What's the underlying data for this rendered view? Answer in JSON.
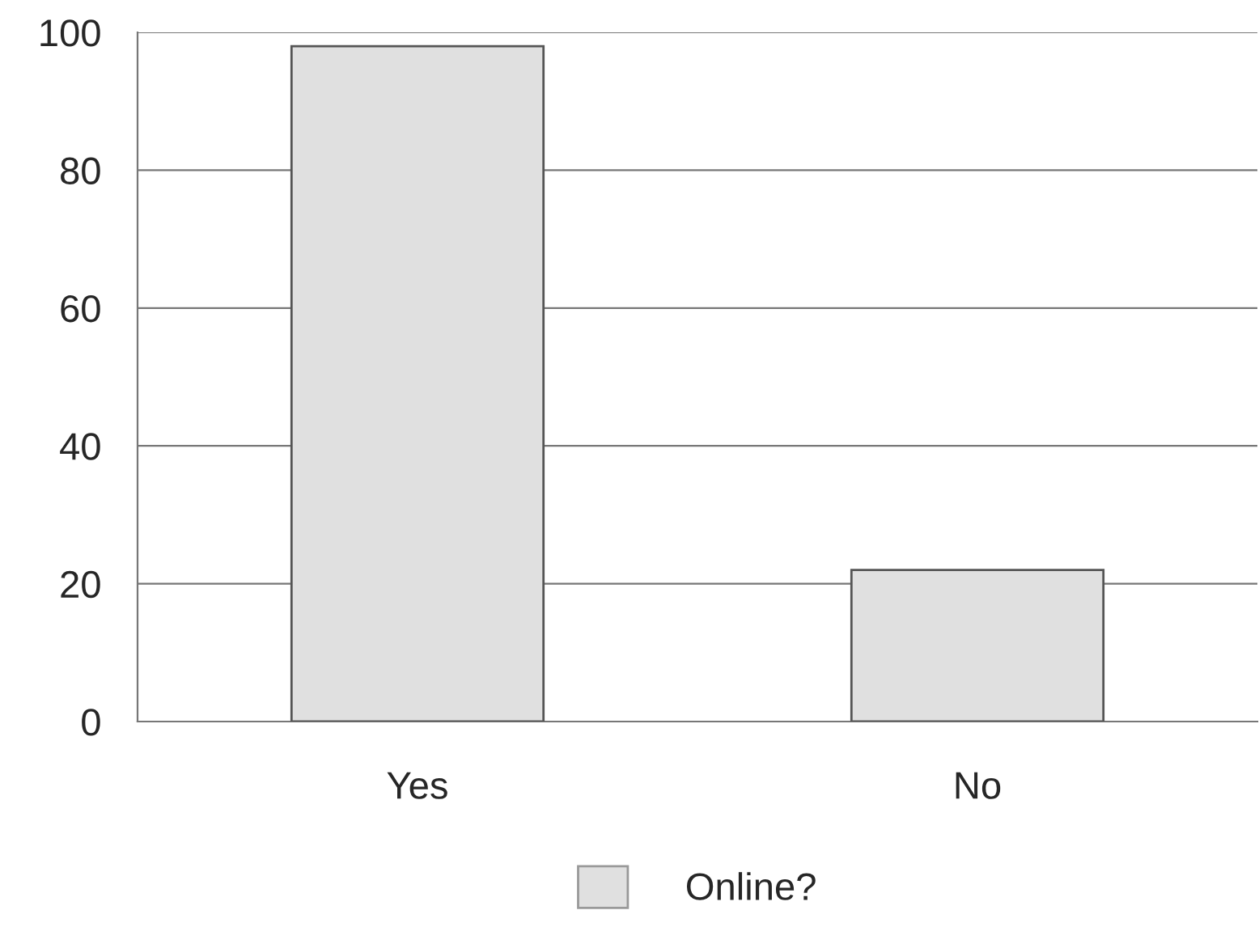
{
  "chart_data": {
    "type": "bar",
    "categories": [
      "Yes",
      "No"
    ],
    "series": [
      {
        "name": "Online?",
        "color": "#e0e0e0",
        "values": [
          98,
          22
        ]
      }
    ],
    "ylim": [
      0,
      100
    ],
    "yticks": [
      0,
      20,
      40,
      60,
      80,
      100
    ],
    "grid": "y",
    "legend": "bottom"
  }
}
